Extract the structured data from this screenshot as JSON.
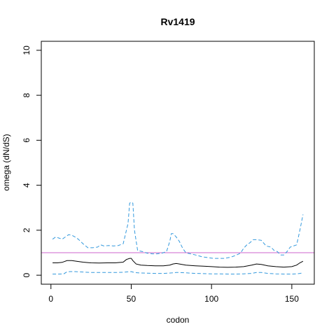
{
  "chart_data": {
    "type": "line",
    "title": "Rv1419",
    "xlabel": "codon",
    "ylabel": "omega (dN/dS)",
    "xlim": [
      -6,
      164
    ],
    "ylim": [
      -0.4,
      10.4
    ],
    "xticks": [
      0,
      50,
      100,
      150
    ],
    "yticks": [
      0,
      2,
      4,
      6,
      8,
      10
    ],
    "reference_line": {
      "y": 1,
      "color": "#cc66cc"
    },
    "grid": false,
    "legend": "none",
    "series": [
      {
        "role": "upper",
        "color": "#3399dd",
        "style": "dashed",
        "x": [
          1,
          3,
          5,
          7,
          9,
          11,
          13,
          15,
          17,
          20,
          23,
          26,
          29,
          31,
          33,
          36,
          39,
          42,
          45,
          47,
          48,
          49,
          50,
          51,
          52,
          54,
          57,
          60,
          63,
          66,
          69,
          72,
          74,
          75,
          76,
          77,
          78,
          80,
          82,
          84,
          85,
          87,
          90,
          94,
          98,
          101,
          104,
          108,
          112,
          115,
          118,
          120,
          122,
          124,
          126,
          128,
          131,
          134,
          137,
          139,
          141,
          143,
          145,
          147,
          149,
          151,
          153,
          155,
          157
        ],
        "y": [
          1.6,
          1.7,
          1.65,
          1.6,
          1.7,
          1.8,
          1.78,
          1.7,
          1.6,
          1.4,
          1.22,
          1.22,
          1.25,
          1.35,
          1.3,
          1.32,
          1.3,
          1.32,
          1.4,
          2.0,
          2.3,
          3.2,
          3.25,
          3.2,
          2.0,
          1.1,
          1.05,
          0.98,
          0.95,
          0.95,
          0.98,
          1.05,
          1.5,
          1.85,
          1.85,
          1.78,
          1.7,
          1.5,
          1.2,
          1.0,
          0.98,
          0.95,
          0.9,
          0.82,
          0.78,
          0.75,
          0.75,
          0.75,
          0.8,
          0.88,
          0.98,
          1.2,
          1.35,
          1.45,
          1.58,
          1.58,
          1.55,
          1.3,
          1.25,
          1.1,
          1.05,
          0.9,
          0.9,
          1.05,
          1.25,
          1.3,
          1.35,
          2.0,
          2.7
        ]
      },
      {
        "role": "mean",
        "color": "#000000",
        "style": "solid",
        "x": [
          1,
          4,
          7,
          10,
          13,
          16,
          20,
          25,
          30,
          35,
          40,
          45,
          47,
          49,
          50,
          51,
          53,
          56,
          60,
          65,
          70,
          74,
          76,
          78,
          80,
          84,
          90,
          95,
          100,
          105,
          110,
          115,
          120,
          125,
          128,
          131,
          135,
          140,
          145,
          150,
          153,
          155,
          157
        ],
        "y": [
          0.55,
          0.55,
          0.57,
          0.65,
          0.65,
          0.62,
          0.58,
          0.55,
          0.54,
          0.55,
          0.55,
          0.58,
          0.7,
          0.75,
          0.75,
          0.65,
          0.5,
          0.45,
          0.43,
          0.42,
          0.42,
          0.45,
          0.5,
          0.52,
          0.5,
          0.45,
          0.42,
          0.4,
          0.38,
          0.36,
          0.35,
          0.36,
          0.38,
          0.45,
          0.5,
          0.48,
          0.42,
          0.38,
          0.36,
          0.38,
          0.45,
          0.55,
          0.62
        ]
      },
      {
        "role": "lower",
        "color": "#3399dd",
        "style": "dashed",
        "x": [
          1,
          5,
          8,
          10,
          12,
          15,
          20,
          25,
          30,
          35,
          40,
          45,
          48,
          50,
          52,
          55,
          60,
          65,
          70,
          75,
          78,
          80,
          85,
          90,
          95,
          100,
          105,
          110,
          115,
          120,
          125,
          128,
          131,
          135,
          140,
          145,
          150,
          153,
          155,
          157
        ],
        "y": [
          0.05,
          0.05,
          0.06,
          0.15,
          0.16,
          0.16,
          0.14,
          0.12,
          0.12,
          0.12,
          0.12,
          0.13,
          0.15,
          0.16,
          0.12,
          0.1,
          0.09,
          0.08,
          0.08,
          0.1,
          0.12,
          0.12,
          0.1,
          0.08,
          0.07,
          0.06,
          0.06,
          0.05,
          0.05,
          0.06,
          0.08,
          0.12,
          0.12,
          0.08,
          0.06,
          0.05,
          0.05,
          0.06,
          0.08,
          0.1
        ]
      }
    ]
  }
}
